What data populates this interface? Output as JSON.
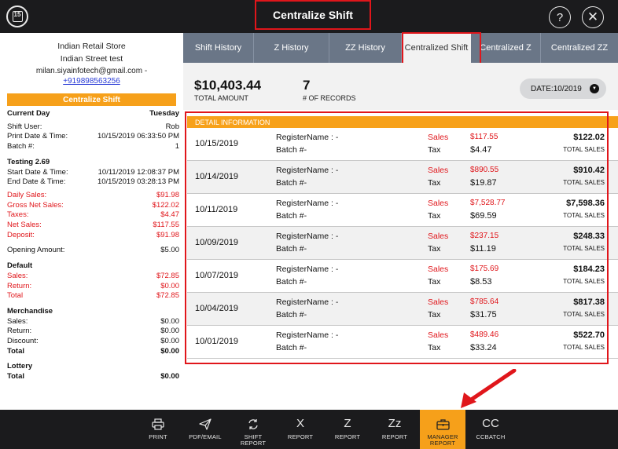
{
  "header": {
    "calendar_day": "15",
    "title": "Centralize Shift",
    "help_glyph": "?",
    "close_glyph": "✕"
  },
  "store": {
    "name": "Indian Retail Store",
    "address": "Indian Street test",
    "email": "milan.siyainfotech@gmail.com -",
    "phone": "+919898563256",
    "section_label": "Centralize Shift"
  },
  "report": {
    "current_day": {
      "label": "Current Day",
      "value": "Tuesday"
    },
    "shift_user": {
      "label": "Shift User:",
      "value": "Rob"
    },
    "print_date": {
      "label": "Print Date & Time:",
      "value": "10/15/2019 06:33:50 PM"
    },
    "batch": {
      "label": "Batch #:",
      "value": "1"
    },
    "register_name": "Testing 2.69",
    "start_date": {
      "label": "Start Date & Time:",
      "value": "10/11/2019 12:08:37 PM"
    },
    "end_date": {
      "label": "End Date & Time:",
      "value": "10/15/2019 03:28:13 PM"
    },
    "daily_sales": {
      "label": "Daily Sales:",
      "value": "$91.98"
    },
    "gross_net_sales": {
      "label": "Gross Net Sales:",
      "value": "$122.02"
    },
    "taxes": {
      "label": "Taxes:",
      "value": "$4.47"
    },
    "net_sales": {
      "label": "Net Sales:",
      "value": "$117.55"
    },
    "deposit": {
      "label": "Deposit:",
      "value": "$91.98"
    },
    "opening_amount": {
      "label": "Opening Amount:",
      "value": "$5.00"
    },
    "default": {
      "title": "Default",
      "sales": {
        "label": "Sales:",
        "value": "$72.85"
      },
      "return": {
        "label": "Return:",
        "value": "$0.00"
      },
      "total": {
        "label": "Total",
        "value": "$72.85"
      }
    },
    "merchandise": {
      "title": "Merchandise",
      "sales": {
        "label": "Sales:",
        "value": "$0.00"
      },
      "return": {
        "label": "Return:",
        "value": "$0.00"
      },
      "discount": {
        "label": "Discount:",
        "value": "$0.00"
      },
      "total": {
        "label": "Total",
        "value": "$0.00"
      }
    },
    "lottery": {
      "title": "Lottery",
      "total": {
        "label": "Total",
        "value": "$0.00"
      }
    }
  },
  "tabs": [
    {
      "label": "Shift History"
    },
    {
      "label": "Z History"
    },
    {
      "label": "ZZ History"
    },
    {
      "label": "Centralized Shift"
    },
    {
      "label": "Centralized Z"
    },
    {
      "label": "Centralized ZZ"
    }
  ],
  "summary": {
    "total_amount": "$10,403.44",
    "total_amount_label": "TOTAL AMOUNT",
    "records": "7",
    "records_label": "# OF RECORDS",
    "date_filter": "DATE:10/2019"
  },
  "detail": {
    "heading": "DETAIL INFORMATION",
    "rows": [
      {
        "date": "10/15/2019",
        "register": "RegisterName : -",
        "batch": "Batch #-",
        "sales_label": "Sales",
        "tax_label": "Tax",
        "sales": "$117.55",
        "tax": "$4.47",
        "total": "$122.02",
        "total_label": "TOTAL SALES"
      },
      {
        "date": "10/14/2019",
        "register": "RegisterName : -",
        "batch": "Batch #-",
        "sales_label": "Sales",
        "tax_label": "Tax",
        "sales": "$890.55",
        "tax": "$19.87",
        "total": "$910.42",
        "total_label": "TOTAL SALES"
      },
      {
        "date": "10/11/2019",
        "register": "RegisterName : -",
        "batch": "Batch #-",
        "sales_label": "Sales",
        "tax_label": "Tax",
        "sales": "$7,528.77",
        "tax": "$69.59",
        "total": "$7,598.36",
        "total_label": "TOTAL SALES"
      },
      {
        "date": "10/09/2019",
        "register": "RegisterName : -",
        "batch": "Batch #-",
        "sales_label": "Sales",
        "tax_label": "Tax",
        "sales": "$237.15",
        "tax": "$11.19",
        "total": "$248.33",
        "total_label": "TOTAL SALES"
      },
      {
        "date": "10/07/2019",
        "register": "RegisterName : -",
        "batch": "Batch #-",
        "sales_label": "Sales",
        "tax_label": "Tax",
        "sales": "$175.69",
        "tax": "$8.53",
        "total": "$184.23",
        "total_label": "TOTAL SALES"
      },
      {
        "date": "10/04/2019",
        "register": "RegisterName : -",
        "batch": "Batch #-",
        "sales_label": "Sales",
        "tax_label": "Tax",
        "sales": "$785.64",
        "tax": "$31.75",
        "total": "$817.38",
        "total_label": "TOTAL SALES"
      },
      {
        "date": "10/01/2019",
        "register": "RegisterName : -",
        "batch": "Batch #-",
        "sales_label": "Sales",
        "tax_label": "Tax",
        "sales": "$489.46",
        "tax": "$33.24",
        "total": "$522.70",
        "total_label": "TOTAL SALES"
      }
    ]
  },
  "toolbar": [
    {
      "label": "PRINT",
      "icon": "printer-icon"
    },
    {
      "label": "PDF/EMAIL",
      "icon": "send-icon"
    },
    {
      "label": "SHIFT REPORT",
      "icon": "refresh-icon"
    },
    {
      "label": "REPORT",
      "icon": "x-report-icon",
      "glyph": "X"
    },
    {
      "label": "REPORT",
      "icon": "z-report-icon",
      "glyph": "Z"
    },
    {
      "label": "REPORT",
      "icon": "zz-report-icon",
      "glyph": "Zz"
    },
    {
      "label": "MANAGER REPORT",
      "icon": "briefcase-icon"
    },
    {
      "label": "CCBATCH",
      "icon": "cc-icon",
      "glyph": "CC"
    }
  ],
  "colors": {
    "accent": "#f6a01a",
    "annotation": "#e0161b",
    "tab_bar": "#6a7687",
    "toolbar_bg": "#1b1b1d"
  }
}
